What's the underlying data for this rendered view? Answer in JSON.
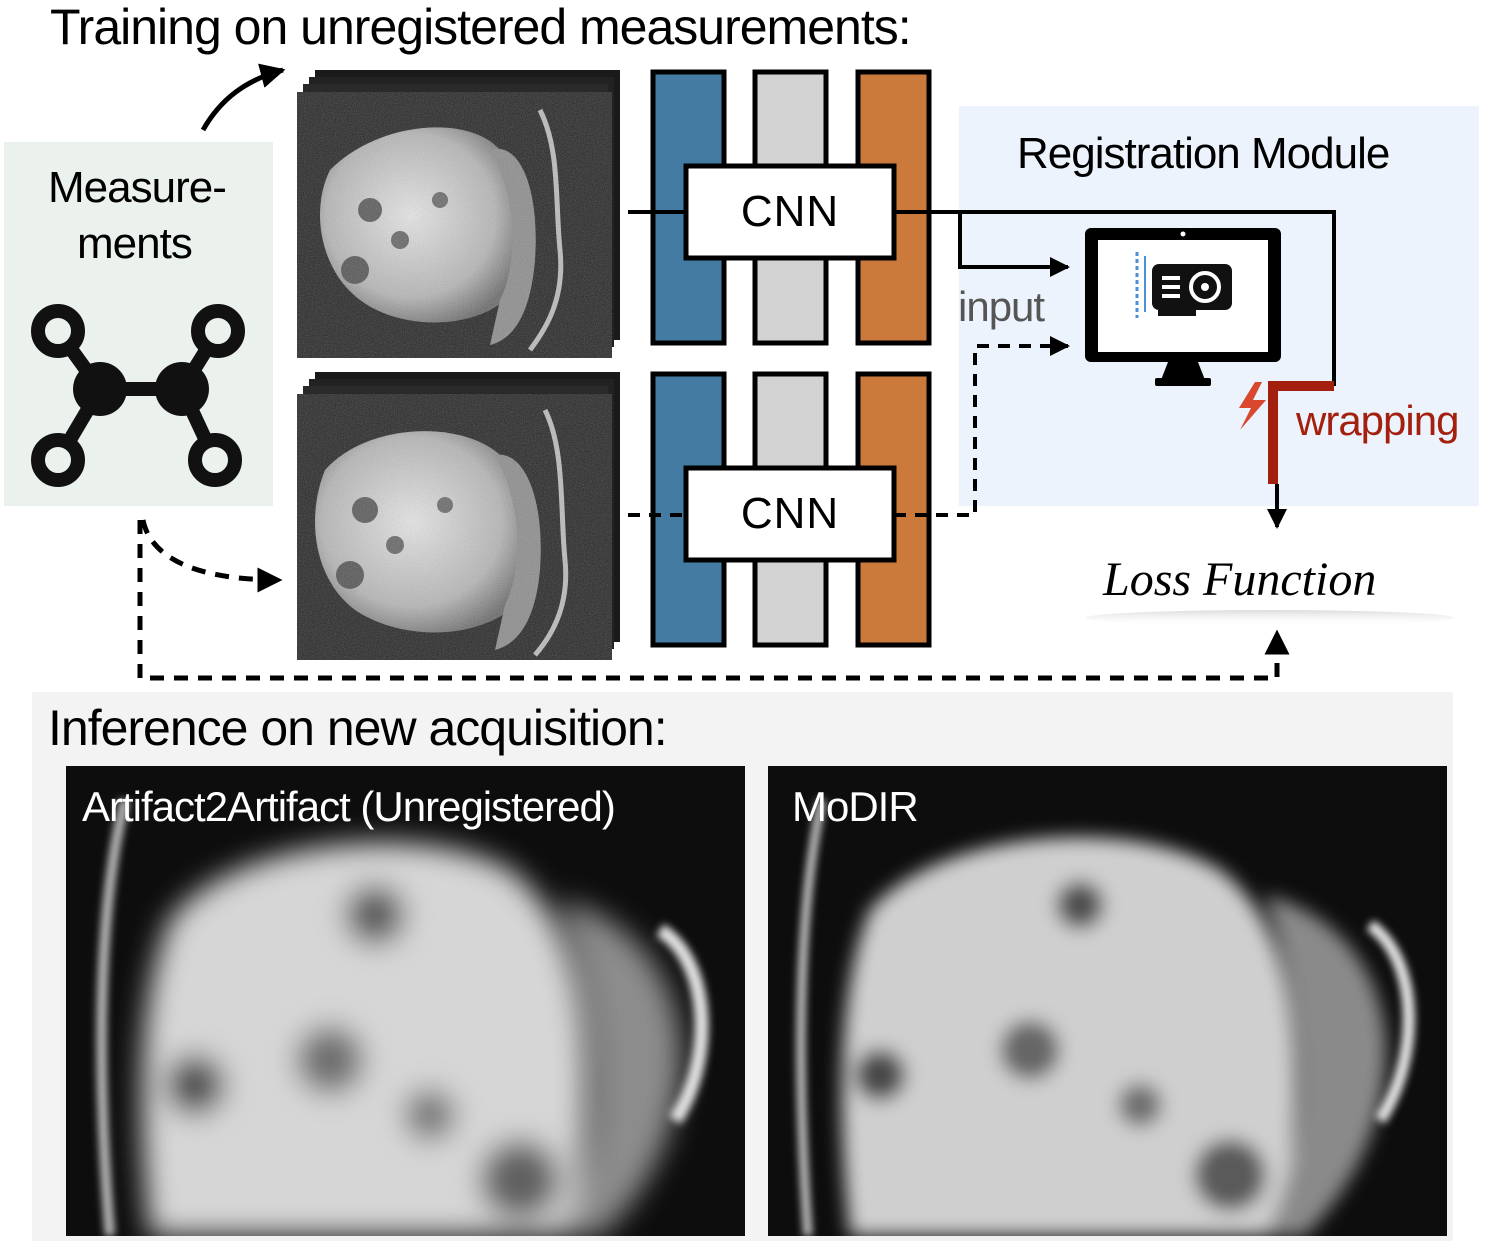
{
  "training": {
    "title": "Training on unregistered measurements:",
    "measurements_label_1": "Measure-",
    "measurements_label_2": "ments",
    "cnn_top": "CNN",
    "cnn_bottom": "CNN",
    "registration_title": "Registration Module",
    "input_label": "input",
    "wrapping_label": "wrapping",
    "loss_label": "Loss Function"
  },
  "inference": {
    "title": "Inference on new acquisition:",
    "left_panel": "Artifact2Artifact (Unregistered)",
    "right_panel": "MoDIR"
  },
  "colors": {
    "cnn_blue": "#437ba2",
    "cnn_gray": "#d2d2d2",
    "cnn_orange": "#cc7a3c",
    "registration_bg": "#edf3fc",
    "measurements_bg": "#ebf2ee",
    "inference_bg": "#f3f3f3",
    "wrapping_red": "#a3200f",
    "lightning": "#d9472f"
  },
  "icons": [
    "network-graph-icon",
    "monitor-icon",
    "gpu-card-icon",
    "lightning-icon"
  ]
}
